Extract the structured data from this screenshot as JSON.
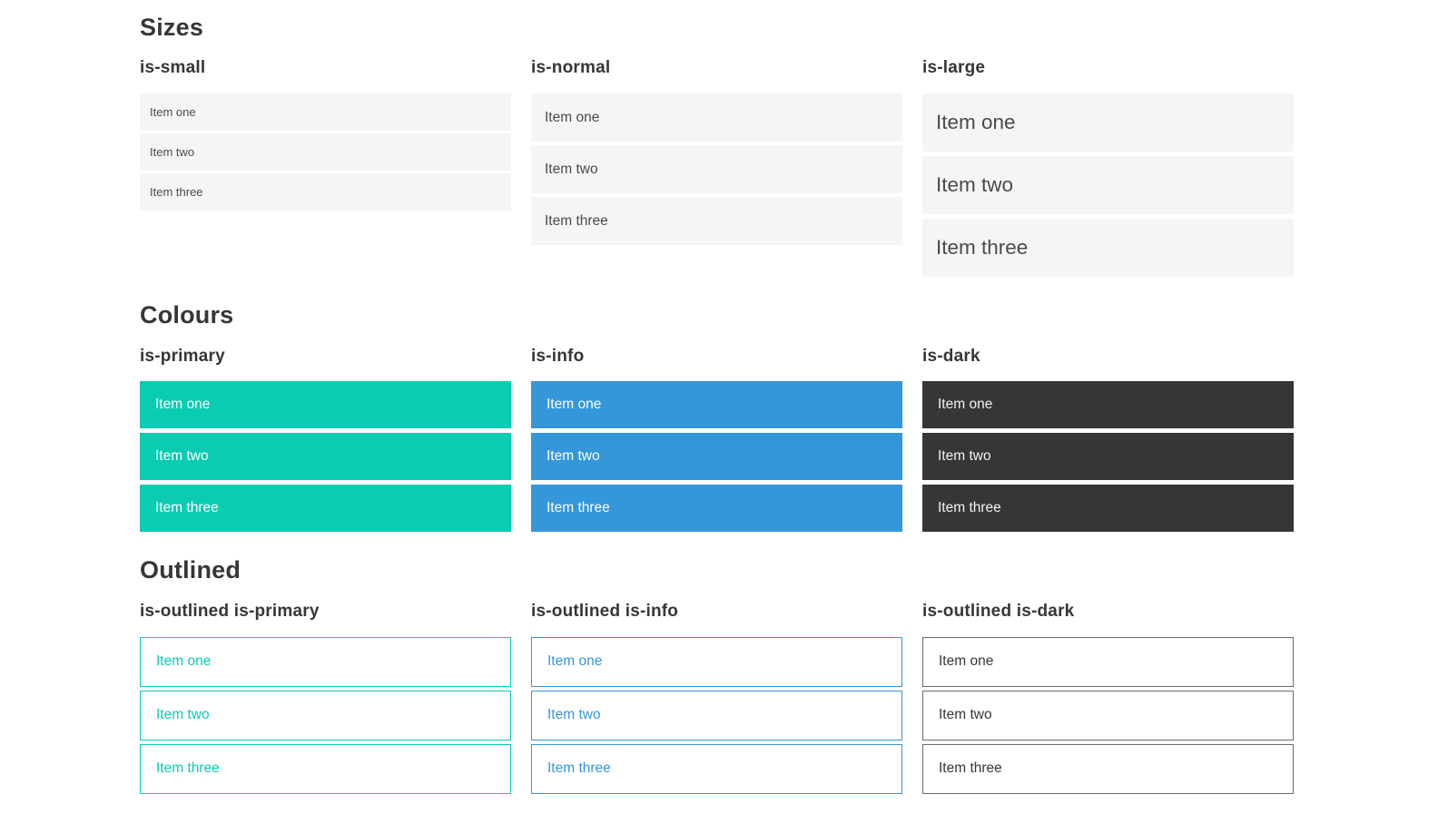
{
  "colors": {
    "primary": "#0accb2",
    "info": "#3497da",
    "dark": "#363636",
    "item_bg": "#f5f5f5",
    "item_text": "#4a4a4a",
    "heading_text": "#363636"
  },
  "sections": [
    {
      "title": "Sizes",
      "groups": [
        {
          "label": "is-small",
          "items": [
            "Item one",
            "Item two",
            "Item three"
          ]
        },
        {
          "label": "is-normal",
          "items": [
            "Item one",
            "Item two",
            "Item three"
          ]
        },
        {
          "label": "is-large",
          "items": [
            "Item one",
            "Item two",
            "Item three"
          ]
        }
      ]
    },
    {
      "title": "Colours",
      "groups": [
        {
          "label": "is-primary",
          "items": [
            "Item one",
            "Item two",
            "Item three"
          ]
        },
        {
          "label": "is-info",
          "items": [
            "Item one",
            "Item two",
            "Item three"
          ]
        },
        {
          "label": "is-dark",
          "items": [
            "Item one",
            "Item two",
            "Item three"
          ]
        }
      ]
    },
    {
      "title": "Outlined",
      "groups": [
        {
          "label": "is-outlined is-primary",
          "items": [
            "Item one",
            "Item two",
            "Item three"
          ]
        },
        {
          "label": "is-outlined is-info",
          "items": [
            "Item one",
            "Item two",
            "Item three"
          ]
        },
        {
          "label": "is-outlined is-dark",
          "items": [
            "Item one",
            "Item two",
            "Item three"
          ]
        }
      ]
    }
  ]
}
